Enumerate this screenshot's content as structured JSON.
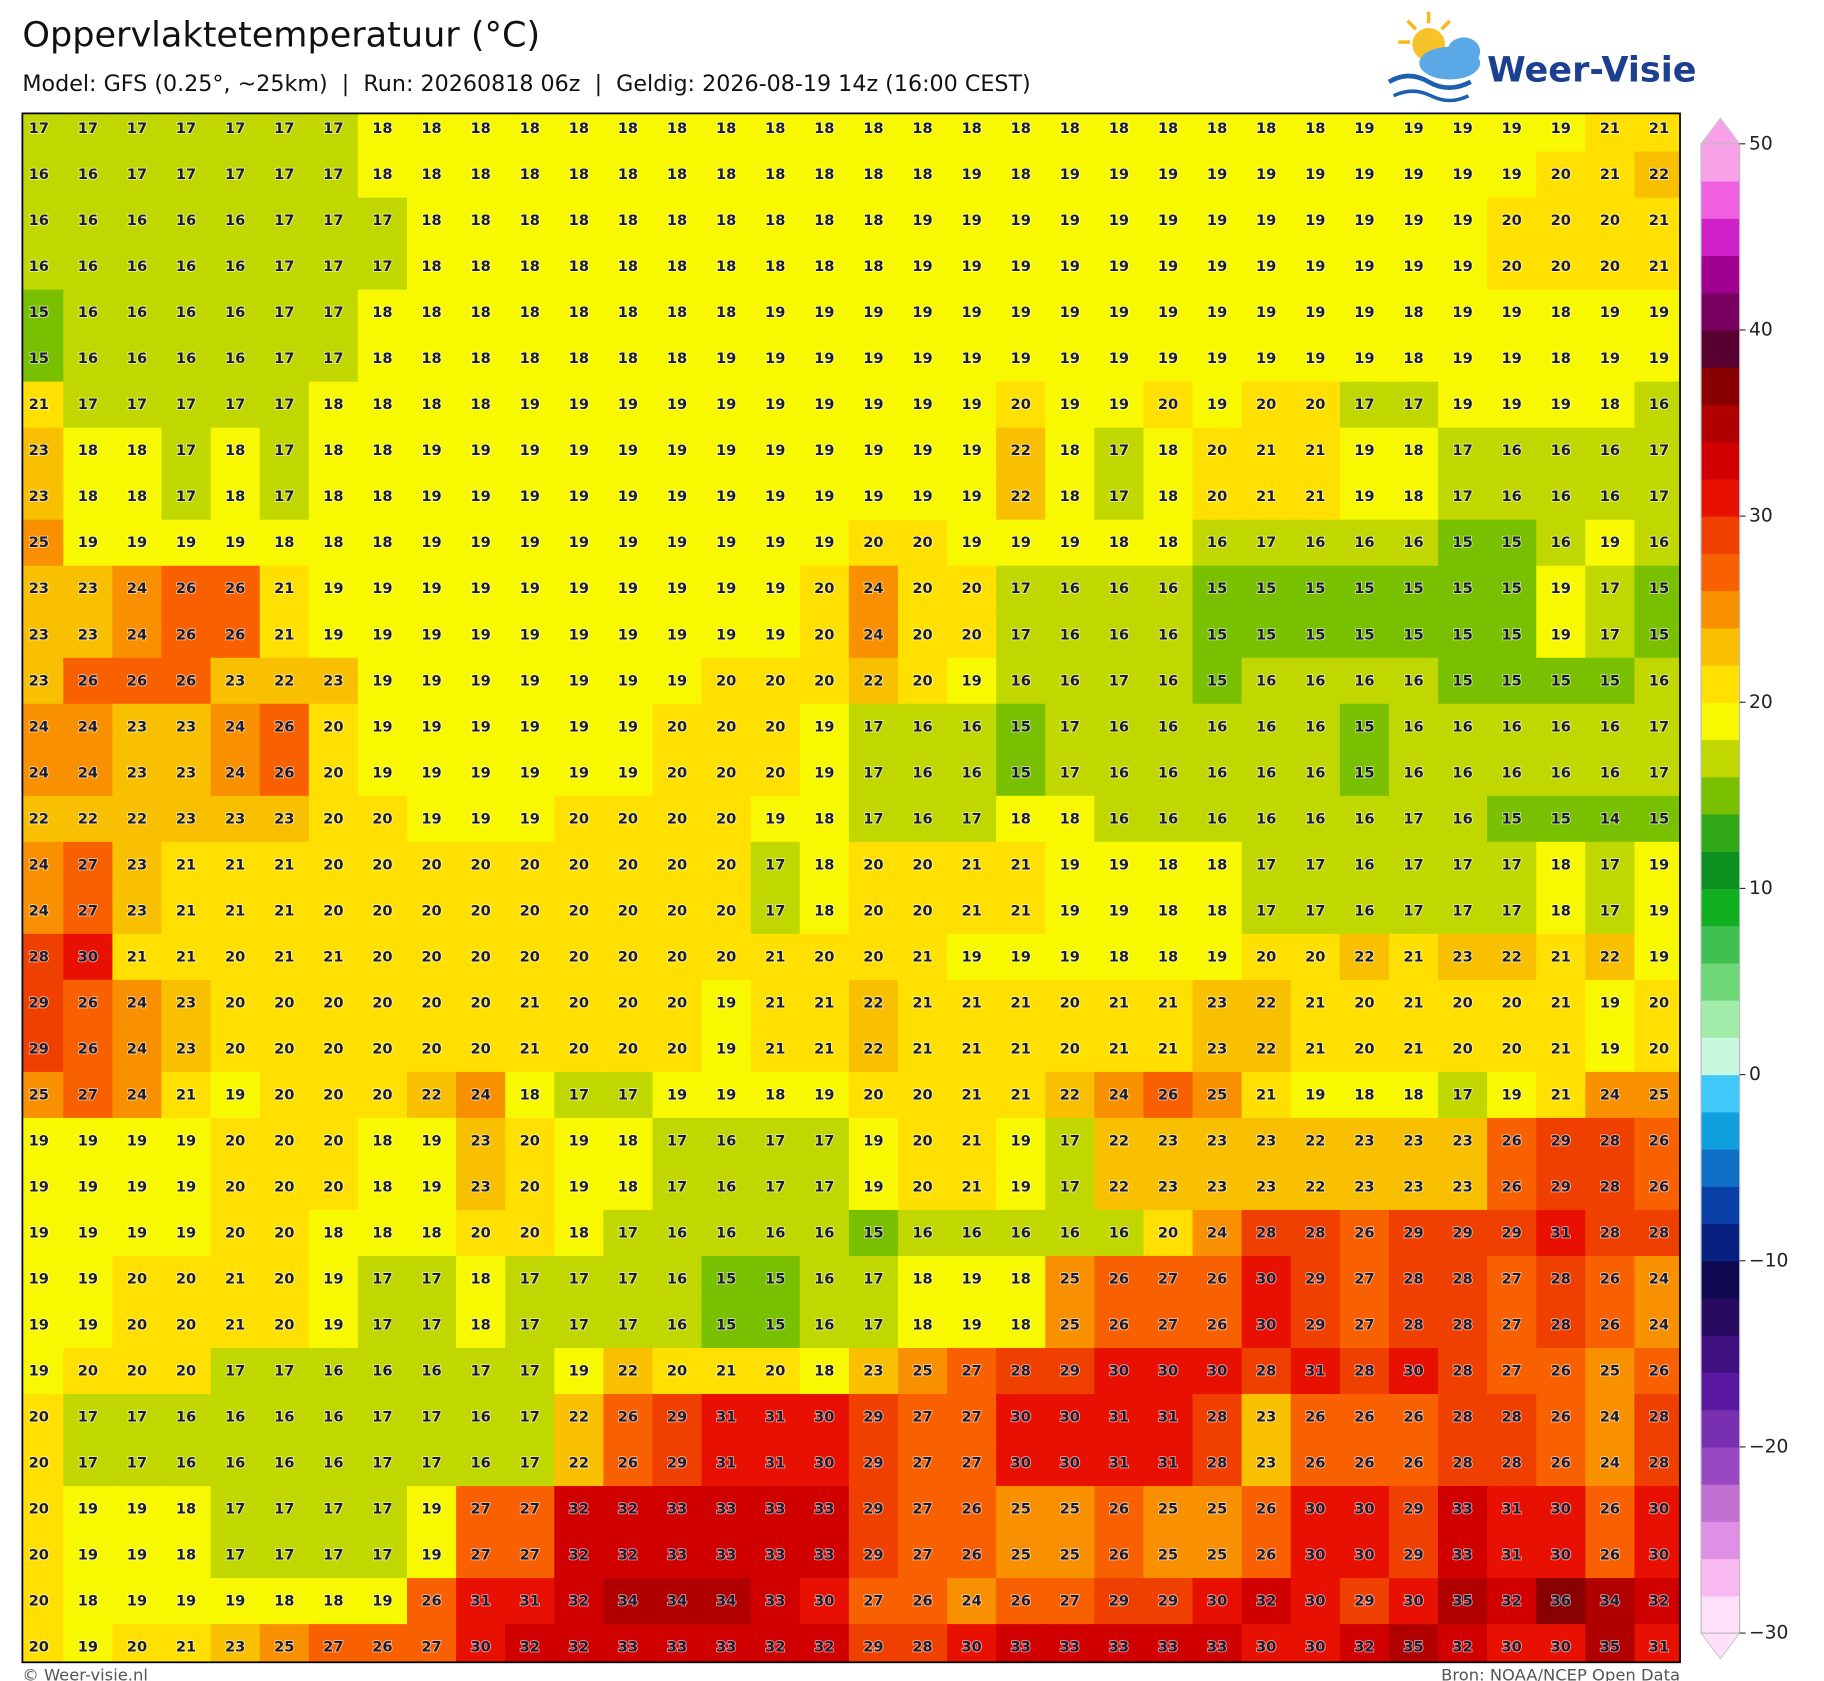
{
  "header": {
    "title": "Oppervlaktetemperatuur (°C)",
    "subtitle": "Model: GFS (0.25°, ~25km)  |  Run: 20260818 06z  |  Geldig: 2026-08-19 14z (16:00 CEST)"
  },
  "logo": {
    "text": "Weer-Visie"
  },
  "map": {
    "grid": [
      [
        17,
        17,
        17,
        17,
        17,
        17,
        17,
        18,
        18,
        18,
        18,
        18,
        18,
        18,
        18,
        18,
        18,
        18,
        18,
        18,
        18,
        18,
        18,
        18,
        18,
        18,
        18,
        19,
        19,
        19,
        19,
        19,
        21,
        21
      ],
      [
        16,
        16,
        17,
        17,
        17,
        17,
        17,
        18,
        18,
        18,
        18,
        18,
        18,
        18,
        18,
        18,
        18,
        18,
        18,
        19,
        18,
        19,
        19,
        19,
        19,
        19,
        19,
        19,
        19,
        19,
        19,
        20,
        21,
        22
      ],
      [
        16,
        16,
        16,
        16,
        16,
        17,
        17,
        17,
        18,
        18,
        18,
        18,
        18,
        18,
        18,
        18,
        18,
        18,
        19,
        19,
        19,
        19,
        19,
        19,
        19,
        19,
        19,
        19,
        19,
        19,
        20,
        20,
        20,
        21
      ],
      [
        16,
        16,
        16,
        16,
        16,
        17,
        17,
        17,
        18,
        18,
        18,
        18,
        18,
        18,
        18,
        18,
        18,
        18,
        19,
        19,
        19,
        19,
        19,
        19,
        19,
        19,
        19,
        19,
        19,
        19,
        20,
        20,
        20,
        21
      ],
      [
        15,
        16,
        16,
        16,
        16,
        17,
        17,
        18,
        18,
        18,
        18,
        18,
        18,
        18,
        18,
        19,
        19,
        19,
        19,
        19,
        19,
        19,
        19,
        19,
        19,
        19,
        19,
        19,
        18,
        19,
        19,
        18,
        19,
        19
      ],
      [
        15,
        16,
        16,
        16,
        16,
        17,
        17,
        18,
        18,
        18,
        18,
        18,
        18,
        18,
        19,
        19,
        19,
        19,
        19,
        19,
        19,
        19,
        19,
        19,
        19,
        19,
        19,
        19,
        18,
        19,
        19,
        18,
        19,
        19
      ],
      [
        21,
        17,
        17,
        17,
        17,
        17,
        18,
        18,
        18,
        18,
        19,
        19,
        19,
        19,
        19,
        19,
        19,
        19,
        19,
        19,
        20,
        19,
        19,
        20,
        19,
        20,
        20,
        17,
        17,
        19,
        19,
        19,
        18,
        16
      ],
      [
        23,
        18,
        18,
        17,
        18,
        17,
        18,
        18,
        19,
        19,
        19,
        19,
        19,
        19,
        19,
        19,
        19,
        19,
        19,
        19,
        22,
        18,
        17,
        18,
        20,
        21,
        21,
        19,
        18,
        17,
        16,
        16,
        16,
        17
      ],
      [
        23,
        18,
        18,
        17,
        18,
        17,
        18,
        18,
        19,
        19,
        19,
        19,
        19,
        19,
        19,
        19,
        19,
        19,
        19,
        19,
        22,
        18,
        17,
        18,
        20,
        21,
        21,
        19,
        18,
        17,
        16,
        16,
        16,
        17
      ],
      [
        25,
        19,
        19,
        19,
        19,
        18,
        18,
        18,
        19,
        19,
        19,
        19,
        19,
        19,
        19,
        19,
        19,
        20,
        20,
        19,
        19,
        19,
        18,
        18,
        16,
        17,
        16,
        16,
        16,
        15,
        15,
        16,
        19,
        16
      ],
      [
        23,
        23,
        24,
        26,
        26,
        21,
        19,
        19,
        19,
        19,
        19,
        19,
        19,
        19,
        19,
        19,
        20,
        24,
        20,
        20,
        17,
        16,
        16,
        16,
        15,
        15,
        15,
        15,
        15,
        15,
        15,
        19,
        17,
        15
      ],
      [
        23,
        23,
        24,
        26,
        26,
        21,
        19,
        19,
        19,
        19,
        19,
        19,
        19,
        19,
        19,
        19,
        20,
        24,
        20,
        20,
        17,
        16,
        16,
        16,
        15,
        15,
        15,
        15,
        15,
        15,
        15,
        19,
        17,
        15
      ],
      [
        23,
        26,
        26,
        26,
        23,
        22,
        23,
        19,
        19,
        19,
        19,
        19,
        19,
        19,
        20,
        20,
        20,
        22,
        20,
        19,
        16,
        16,
        17,
        16,
        15,
        16,
        16,
        16,
        16,
        15,
        15,
        15,
        15,
        16
      ],
      [
        24,
        24,
        23,
        23,
        24,
        26,
        20,
        19,
        19,
        19,
        19,
        19,
        19,
        20,
        20,
        20,
        19,
        17,
        16,
        16,
        15,
        17,
        16,
        16,
        16,
        16,
        16,
        15,
        16,
        16,
        16,
        16,
        16,
        17
      ],
      [
        24,
        24,
        23,
        23,
        24,
        26,
        20,
        19,
        19,
        19,
        19,
        19,
        19,
        20,
        20,
        20,
        19,
        17,
        16,
        16,
        15,
        17,
        16,
        16,
        16,
        16,
        16,
        15,
        16,
        16,
        16,
        16,
        16,
        17
      ],
      [
        22,
        22,
        22,
        23,
        23,
        23,
        20,
        20,
        19,
        19,
        19,
        20,
        20,
        20,
        20,
        19,
        18,
        17,
        16,
        17,
        18,
        18,
        16,
        16,
        16,
        16,
        16,
        16,
        17,
        16,
        15,
        15,
        14,
        15
      ],
      [
        24,
        27,
        23,
        21,
        21,
        21,
        20,
        20,
        20,
        20,
        20,
        20,
        20,
        20,
        20,
        17,
        18,
        20,
        20,
        21,
        21,
        19,
        19,
        18,
        18,
        17,
        17,
        16,
        17,
        17,
        17,
        18,
        17,
        19
      ],
      [
        24,
        27,
        23,
        21,
        21,
        21,
        20,
        20,
        20,
        20,
        20,
        20,
        20,
        20,
        20,
        17,
        18,
        20,
        20,
        21,
        21,
        19,
        19,
        18,
        18,
        17,
        17,
        16,
        17,
        17,
        17,
        18,
        17,
        19
      ],
      [
        28,
        30,
        21,
        21,
        20,
        21,
        21,
        20,
        20,
        20,
        20,
        20,
        20,
        20,
        20,
        21,
        20,
        20,
        21,
        19,
        19,
        19,
        18,
        18,
        19,
        20,
        20,
        22,
        21,
        23,
        22,
        21,
        22,
        19
      ],
      [
        29,
        26,
        24,
        23,
        20,
        20,
        20,
        20,
        20,
        20,
        21,
        20,
        20,
        20,
        19,
        21,
        21,
        22,
        21,
        21,
        21,
        20,
        21,
        21,
        23,
        22,
        21,
        20,
        21,
        20,
        20,
        21,
        19,
        20
      ],
      [
        29,
        26,
        24,
        23,
        20,
        20,
        20,
        20,
        20,
        20,
        21,
        20,
        20,
        20,
        19,
        21,
        21,
        22,
        21,
        21,
        21,
        20,
        21,
        21,
        23,
        22,
        21,
        20,
        21,
        20,
        20,
        21,
        19,
        20
      ],
      [
        25,
        27,
        24,
        21,
        19,
        20,
        20,
        20,
        22,
        24,
        18,
        17,
        17,
        19,
        19,
        18,
        19,
        20,
        20,
        21,
        21,
        22,
        24,
        26,
        25,
        21,
        19,
        18,
        18,
        17,
        19,
        21,
        24,
        25
      ],
      [
        19,
        19,
        19,
        19,
        20,
        20,
        20,
        18,
        19,
        23,
        20,
        19,
        18,
        17,
        16,
        17,
        17,
        19,
        20,
        21,
        19,
        17,
        22,
        23,
        23,
        23,
        22,
        23,
        23,
        23,
        26,
        29,
        28,
        26
      ],
      [
        19,
        19,
        19,
        19,
        20,
        20,
        20,
        18,
        19,
        23,
        20,
        19,
        18,
        17,
        16,
        17,
        17,
        19,
        20,
        21,
        19,
        17,
        22,
        23,
        23,
        23,
        22,
        23,
        23,
        23,
        26,
        29,
        28,
        26
      ],
      [
        19,
        19,
        19,
        19,
        20,
        20,
        18,
        18,
        18,
        20,
        20,
        18,
        17,
        16,
        16,
        16,
        16,
        15,
        16,
        16,
        16,
        16,
        16,
        20,
        24,
        28,
        28,
        26,
        29,
        29,
        29,
        31,
        28,
        28
      ],
      [
        19,
        19,
        20,
        20,
        21,
        20,
        19,
        17,
        17,
        18,
        17,
        17,
        17,
        16,
        15,
        15,
        16,
        17,
        18,
        19,
        18,
        25,
        26,
        27,
        26,
        30,
        29,
        27,
        28,
        28,
        27,
        28,
        26,
        24
      ],
      [
        19,
        19,
        20,
        20,
        21,
        20,
        19,
        17,
        17,
        18,
        17,
        17,
        17,
        16,
        15,
        15,
        16,
        17,
        18,
        19,
        18,
        25,
        26,
        27,
        26,
        30,
        29,
        27,
        28,
        28,
        27,
        28,
        26,
        24
      ],
      [
        19,
        20,
        20,
        20,
        17,
        17,
        16,
        16,
        16,
        17,
        17,
        19,
        22,
        20,
        21,
        20,
        18,
        23,
        25,
        27,
        28,
        29,
        30,
        30,
        30,
        28,
        31,
        28,
        30,
        28,
        27,
        26,
        25,
        26
      ],
      [
        20,
        17,
        17,
        16,
        16,
        16,
        16,
        17,
        17,
        16,
        17,
        22,
        26,
        29,
        31,
        31,
        30,
        29,
        27,
        27,
        30,
        30,
        31,
        31,
        28,
        23,
        26,
        26,
        26,
        28,
        28,
        26,
        24,
        28
      ],
      [
        20,
        17,
        17,
        16,
        16,
        16,
        16,
        17,
        17,
        16,
        17,
        22,
        26,
        29,
        31,
        31,
        30,
        29,
        27,
        27,
        30,
        30,
        31,
        31,
        28,
        23,
        26,
        26,
        26,
        28,
        28,
        26,
        24,
        28
      ],
      [
        20,
        19,
        19,
        18,
        17,
        17,
        17,
        17,
        19,
        27,
        27,
        32,
        32,
        33,
        33,
        33,
        33,
        29,
        27,
        26,
        25,
        25,
        26,
        25,
        25,
        26,
        30,
        30,
        29,
        33,
        31,
        30,
        26,
        30
      ],
      [
        20,
        19,
        19,
        18,
        17,
        17,
        17,
        17,
        19,
        27,
        27,
        32,
        32,
        33,
        33,
        33,
        33,
        29,
        27,
        26,
        25,
        25,
        26,
        25,
        25,
        26,
        30,
        30,
        29,
        33,
        31,
        30,
        26,
        30
      ],
      [
        20,
        18,
        19,
        19,
        19,
        18,
        18,
        19,
        26,
        31,
        31,
        32,
        34,
        34,
        34,
        33,
        30,
        27,
        26,
        24,
        26,
        27,
        29,
        29,
        30,
        32,
        30,
        29,
        30,
        35,
        32,
        36,
        34,
        32
      ],
      [
        20,
        19,
        20,
        21,
        23,
        25,
        27,
        26,
        27,
        30,
        32,
        32,
        33,
        33,
        33,
        32,
        32,
        29,
        28,
        30,
        33,
        33,
        33,
        33,
        33,
        30,
        30,
        32,
        35,
        32,
        30,
        30,
        35,
        31
      ]
    ],
    "colorbar": {
      "clim": [
        -30,
        50
      ],
      "ticks": [
        50,
        40,
        30,
        20,
        10,
        0,
        {
          "value": -10,
          "label": "−10"
        },
        {
          "value": -20,
          "label": "−20"
        },
        {
          "value": -30,
          "label": "−30"
        }
      ],
      "colors": [
        "#fee0fa",
        "#f8b8f0",
        "#e090e4",
        "#c070d0",
        "#9848c0",
        "#7830b0",
        "#5a18a0",
        "#401080",
        "#280a60",
        "#100850",
        "#082080",
        "#0840a8",
        "#1070c8",
        "#10a0e0",
        "#40c8f8",
        "#c8f8e0",
        "#a0eca8",
        "#70d878",
        "#40c050",
        "#10b020",
        "#0c9020",
        "#30a818",
        "#78c000",
        "#c0d800",
        "#f8f800",
        "#ffe000",
        "#f8c000",
        "#f89000",
        "#f86000",
        "#f04000",
        "#e81000",
        "#d00000",
        "#b00000",
        "#880000",
        "#580030",
        "#780060",
        "#a00090",
        "#d020c8",
        "#f060e0",
        "#f8a0e8"
      ]
    }
  },
  "footer": {
    "left": "© Weer-visie.nl",
    "right": "Bron: NOAA/NCEP Open Data"
  }
}
